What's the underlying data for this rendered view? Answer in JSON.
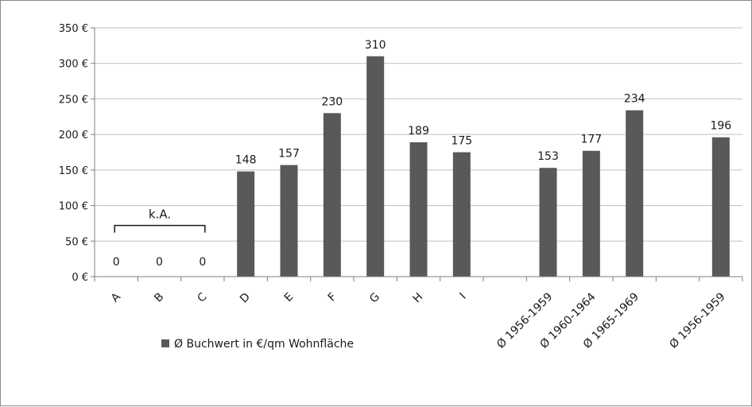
{
  "chart_data": {
    "type": "bar",
    "categories": [
      "A",
      "B",
      "C",
      "D",
      "E",
      "F",
      "G",
      "H",
      "I",
      "",
      "Ø 1956-1959",
      "Ø 1960-1964",
      "Ø 1965-1969",
      "",
      "Ø 1956-1959"
    ],
    "series": [
      {
        "name": "Ø Buchwert in €/qm Wohnfläche",
        "values": [
          0,
          0,
          0,
          148,
          157,
          230,
          310,
          189,
          175,
          null,
          153,
          177,
          234,
          null,
          196
        ],
        "data_labels": [
          "0",
          "0",
          "0",
          "148",
          "157",
          "230",
          "310",
          "189",
          "175",
          "",
          "153",
          "177",
          "234",
          "",
          "196"
        ]
      }
    ],
    "y_ticks": [
      {
        "value": 0,
        "label": "0 €"
      },
      {
        "value": 50,
        "label": "50 €"
      },
      {
        "value": 100,
        "label": "100 €"
      },
      {
        "value": 150,
        "label": "150 €"
      },
      {
        "value": 200,
        "label": "200 €"
      },
      {
        "value": 250,
        "label": "250 €"
      },
      {
        "value": 300,
        "label": "300 €"
      },
      {
        "value": 350,
        "label": "350 €"
      }
    ],
    "ylim": [
      0,
      350
    ],
    "grid": true,
    "bar_color": "#595959",
    "legend_position": "bottom-left",
    "annotations": [
      {
        "text": "k.A.",
        "bracket_from_category": 0,
        "bracket_to_category": 2,
        "y_value": 72
      }
    ]
  }
}
